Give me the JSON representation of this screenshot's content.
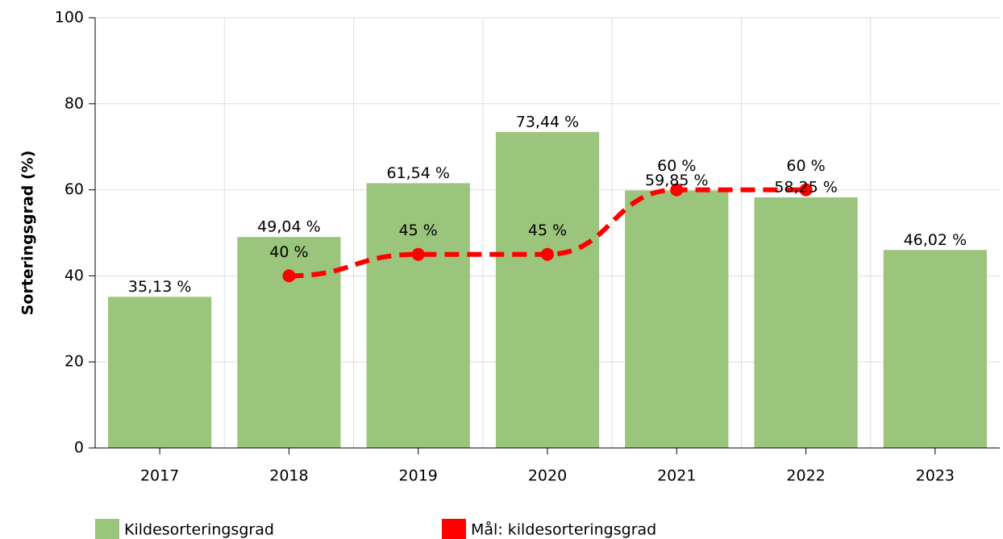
{
  "chart_data": {
    "type": "bar",
    "y_label": "Sorteringsgrad (%)",
    "categories": [
      "2017",
      "2018",
      "2019",
      "2020",
      "2021",
      "2022",
      "2023"
    ],
    "series": [
      {
        "name": "Kildesorteringsgrad",
        "type": "bar",
        "color": "#9bc47c",
        "values": [
          35.13,
          49.04,
          61.54,
          73.44,
          59.85,
          58.25,
          46.02
        ],
        "value_labels": [
          "35,13 %",
          "49,04 %",
          "61,54 %",
          "73,44 %",
          "59,85 %",
          "58,25 %",
          "46,02 %"
        ]
      },
      {
        "name": "Mål: kildesorteringsgrad",
        "type": "line",
        "color": "#ff0000",
        "values": [
          null,
          40,
          45,
          45,
          60,
          60,
          null
        ],
        "value_labels": [
          null,
          "40 %",
          "45 %",
          "45 %",
          "60 %",
          "60 %",
          null
        ]
      }
    ],
    "ylim": [
      0,
      100
    ],
    "yticks": [
      0,
      20,
      40,
      60,
      80,
      100
    ],
    "grid": true
  }
}
